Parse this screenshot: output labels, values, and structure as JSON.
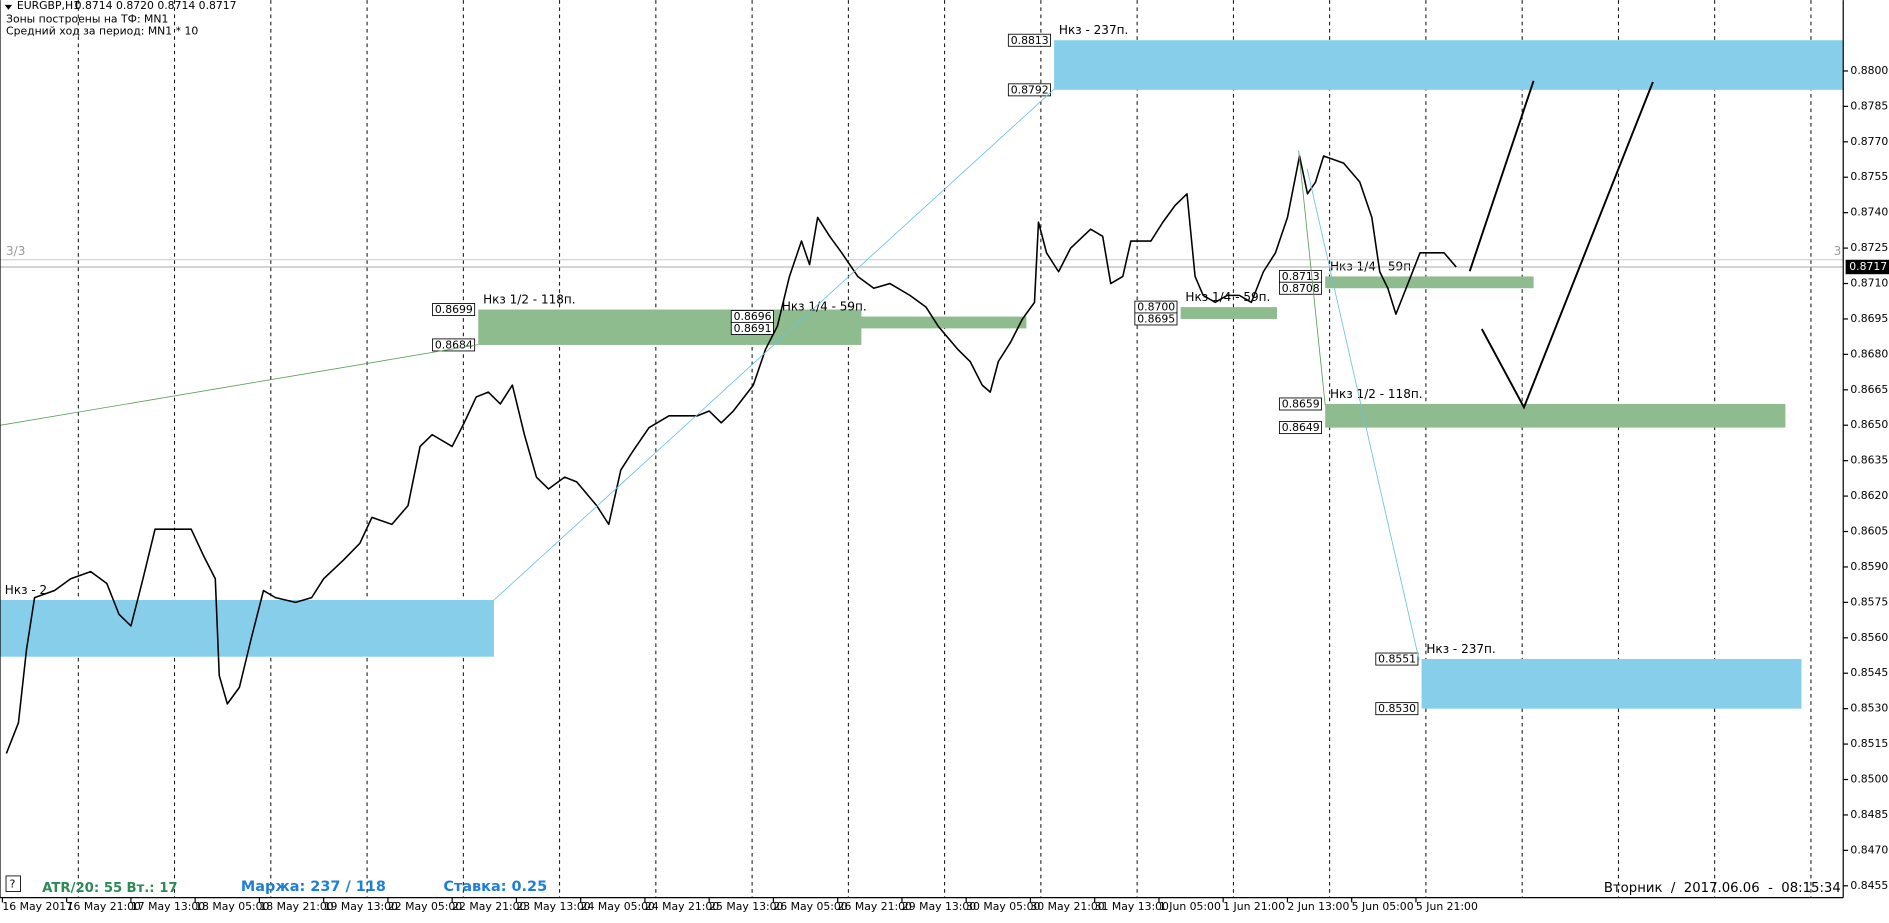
{
  "header": {
    "symbol": "EURGBP,H1",
    "ohlc": "0.8714 0.8720 0.8714 0.8717",
    "zones_tf": "Зоны построены на ТФ: MN1",
    "avg": "Средний ход за период: MN1 * 10"
  },
  "footer": {
    "help": "?",
    "atr": "ATR/20: 55",
    "vt": "Вт.: 17",
    "margin": "Маржа: 237 / 118",
    "rate": "Ставка: 0.25",
    "datetime": "Вторник  /  2017.06.06  -  08:15:34"
  },
  "chart_data": {
    "type": "line",
    "xlim": [
      -0.6,
      458.4
    ],
    "ylim": [
      0.845,
      0.883
    ],
    "xticks": [
      {
        "value": 0,
        "label": "16 May 2017"
      },
      {
        "value": 16,
        "label": "16 May 21:00"
      },
      {
        "value": 32,
        "label": "17 May 13:00"
      },
      {
        "value": 48,
        "label": "18 May 05:00"
      },
      {
        "value": 64,
        "label": "18 May 21:00"
      },
      {
        "value": 80,
        "label": "19 May 13:00"
      },
      {
        "value": 96,
        "label": "22 May 05:00"
      },
      {
        "value": 112,
        "label": "22 May 21:00"
      },
      {
        "value": 128,
        "label": "23 May 13:00"
      },
      {
        "value": 144,
        "label": "24 May 05:00"
      },
      {
        "value": 160,
        "label": "24 May 21:00"
      },
      {
        "value": 176,
        "label": "25 May 13:00"
      },
      {
        "value": 192,
        "label": "26 May 05:00"
      },
      {
        "value": 208,
        "label": "26 May 21:00"
      },
      {
        "value": 224,
        "label": "29 May 13:00"
      },
      {
        "value": 240,
        "label": "30 May 05:00"
      },
      {
        "value": 256,
        "label": "30 May 21:00"
      },
      {
        "value": 272,
        "label": "31 May 13:00"
      },
      {
        "value": 288,
        "label": "1 Jun 05:00"
      },
      {
        "value": 304,
        "label": "1 Jun 21:00"
      },
      {
        "value": 320,
        "label": "2 Jun 13:00"
      },
      {
        "value": 336,
        "label": "5 Jun 05:00"
      },
      {
        "value": 352,
        "label": "5 Jun 21:00"
      }
    ],
    "yticks": [
      {
        "value": 0.88,
        "label": "0.8800"
      },
      0.8785,
      {
        "value": 0.877,
        "label": "0.8770"
      },
      0.8755,
      {
        "value": 0.874,
        "label": "0.8740"
      },
      0.8725,
      {
        "value": 0.871,
        "label": "0.8710"
      },
      0.8695,
      {
        "value": 0.868,
        "label": "0.8680"
      },
      0.8665,
      {
        "value": 0.865,
        "label": "0.8650"
      },
      0.8635,
      {
        "value": 0.862,
        "label": "0.8620"
      },
      0.8605,
      {
        "value": 0.859,
        "label": "0.8590"
      },
      0.8575,
      {
        "value": 0.856,
        "label": "0.8560"
      },
      0.8545,
      {
        "value": 0.853,
        "label": "0.8530"
      },
      0.8515,
      {
        "value": 0.85,
        "label": "0.8500"
      },
      0.8485,
      {
        "value": 0.847,
        "label": "0.8470"
      },
      0.8455
    ],
    "series": [
      {
        "color": "#000000",
        "x": [
          1,
          4,
          6,
          8,
          13,
          17,
          22,
          26,
          29,
          32,
          35,
          38,
          43,
          47,
          50,
          53,
          54,
          56,
          59,
          62,
          65,
          68,
          73,
          77,
          80,
          85,
          89,
          92,
          97,
          101,
          104,
          107,
          112,
          115,
          118,
          121,
          124,
          127,
          130,
          133,
          136,
          140,
          143,
          148,
          151,
          154,
          157,
          161,
          166,
          169,
          173,
          176,
          179,
          182,
          187,
          190,
          193,
          196,
          199,
          201,
          203,
          206,
          209,
          213,
          217,
          221,
          226,
          230,
          233,
          238,
          241,
          244,
          246,
          248,
          251,
          254,
          257,
          258,
          260,
          263,
          266,
          271,
          274,
          276,
          279,
          281,
          286,
          289,
          292,
          295,
          297,
          299,
          302,
          305,
          308,
          311,
          314,
          317,
          320,
          323,
          325,
          327,
          329,
          334,
          338,
          341,
          343,
          345,
          347,
          350,
          353,
          356,
          359,
          362
        ],
        "values": [
          0.8511,
          0.8524,
          0.8555,
          0.8577,
          0.858,
          0.8585,
          0.8588,
          0.8583,
          0.857,
          0.8565,
          0.8585,
          0.8606,
          0.8606,
          0.8606,
          0.8595,
          0.8585,
          0.8544,
          0.8532,
          0.8539,
          0.856,
          0.858,
          0.8577,
          0.8575,
          0.8577,
          0.8585,
          0.8593,
          0.86,
          0.8611,
          0.8608,
          0.8616,
          0.8641,
          0.8646,
          0.8641,
          0.8651,
          0.8662,
          0.8664,
          0.8659,
          0.8667,
          0.8646,
          0.8628,
          0.8623,
          0.8628,
          0.8626,
          0.8616,
          0.8608,
          0.8631,
          0.8639,
          0.8649,
          0.8654,
          0.8654,
          0.8654,
          0.8656,
          0.8651,
          0.8656,
          0.8667,
          0.8682,
          0.8692,
          0.8713,
          0.8728,
          0.8718,
          0.8738,
          0.873,
          0.8723,
          0.8713,
          0.8708,
          0.871,
          0.8705,
          0.87,
          0.8692,
          0.8682,
          0.8677,
          0.8667,
          0.8664,
          0.8677,
          0.8685,
          0.8695,
          0.8702,
          0.8736,
          0.8723,
          0.8715,
          0.8725,
          0.8733,
          0.873,
          0.871,
          0.8713,
          0.8728,
          0.8728,
          0.8736,
          0.8743,
          0.8748,
          0.8713,
          0.8705,
          0.8702,
          0.8705,
          0.8705,
          0.8702,
          0.8715,
          0.8723,
          0.8738,
          0.8764,
          0.8748,
          0.8753,
          0.8764,
          0.8761,
          0.8753,
          0.8738,
          0.8715,
          0.8708,
          0.8697,
          0.871,
          0.8723,
          0.8723,
          0.8723,
          0.8717
        ]
      }
    ],
    "last_price": 0.8717,
    "annotations": [
      "3/3",
      "3"
    ],
    "zones": [
      {
        "label": "Нкз - 2",
        "color": "#87ceeb",
        "tagged": false,
        "x": [
          -0.6,
          122.4
        ],
        "prices": [
          0.8576,
          0.8552
        ]
      },
      {
        "label": "Нкз 1/2 - 118п.",
        "color": "#8fbc8f",
        "tagged": true,
        "x": [
          118.5,
          213.9
        ],
        "prices": [
          0.8699,
          0.8684
        ]
      },
      {
        "label": "Нкз 1/4 - 59п.",
        "color": "#8fbc8f",
        "tagged": true,
        "x": [
          192.9,
          255
        ],
        "prices": [
          0.8696,
          0.8691
        ]
      },
      {
        "label": "Нкз 1/4 - 59п.",
        "color": "#8fbc8f",
        "tagged": true,
        "x": [
          293.4,
          317.4
        ],
        "prices": [
          {
            "value": 0.87,
            "label": "0.8700"
          },
          0.8695
        ]
      },
      {
        "label": "Нкз 1/4 - 59п.",
        "color": "#8fbc8f",
        "tagged": true,
        "x": [
          329.4,
          381.3
        ],
        "prices": [
          0.8713,
          0.8708
        ]
      },
      {
        "label": "Нкз 1/2 - 118п.",
        "color": "#8fbc8f",
        "tagged": true,
        "x": [
          329.4,
          444
        ],
        "prices": [
          0.8659,
          0.8649
        ]
      },
      {
        "label": "Нкз - 237п.",
        "color": "#87ceeb",
        "tagged": true,
        "x": [
          261.9,
          458.4
        ],
        "prices": [
          0.8813,
          0.8792
        ]
      },
      {
        "label": "Нкз - 237п.",
        "color": "#87ceeb",
        "tagged": true,
        "x": [
          353.4,
          448
        ],
        "prices": [
          0.8551,
          {
            "value": 0.853,
            "label": "0.8530"
          }
        ]
      }
    ]
  }
}
